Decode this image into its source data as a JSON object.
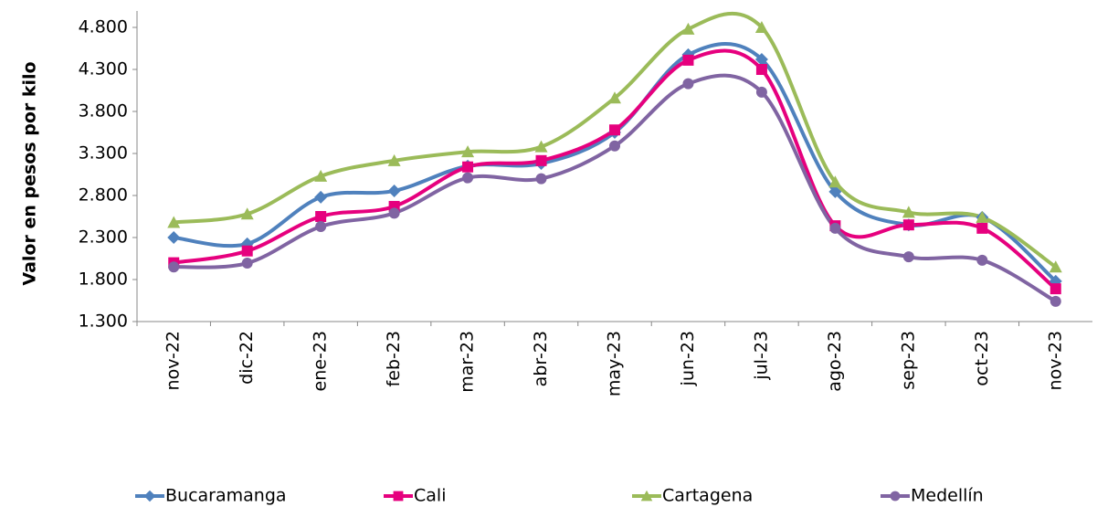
{
  "chart_data": {
    "type": "line",
    "y_label": "Valor en pesos por kilo",
    "categories": [
      "nov-22",
      "dic-22",
      "ene-23",
      "feb-23",
      "mar-23",
      "abr-23",
      "may-23",
      "jun-23",
      "jul-23",
      "ago-23",
      "sep-23",
      "oct-23",
      "nov-23"
    ],
    "series": [
      {
        "name": "Bucaramanga",
        "color": "#4f81bd",
        "marker": "diamond",
        "values": [
          2300,
          2225,
          2780,
          2855,
          3150,
          3180,
          3550,
          4475,
          4420,
          2845,
          2450,
          2540,
          1780
        ]
      },
      {
        "name": "Cali",
        "color": "#e6007e",
        "marker": "square",
        "values": [
          2000,
          2140,
          2550,
          2670,
          3140,
          3215,
          3580,
          4410,
          4300,
          2440,
          2450,
          2410,
          1690
        ]
      },
      {
        "name": "Cartagena",
        "color": "#9bbb59",
        "marker": "triangle",
        "values": [
          2480,
          2580,
          3030,
          3215,
          3320,
          3380,
          3960,
          4780,
          4800,
          2960,
          2600,
          2540,
          1950
        ]
      },
      {
        "name": "Medellín",
        "color": "#8064a2",
        "marker": "circle",
        "values": [
          1950,
          1995,
          2430,
          2590,
          3010,
          3000,
          3390,
          4130,
          4030,
          2410,
          2070,
          2030,
          1540
        ]
      }
    ],
    "ylim": [
      1300,
      4800
    ],
    "yticks": [
      {
        "value": 1300,
        "label": "1.300"
      },
      {
        "value": 1800,
        "label": "1.800"
      },
      {
        "value": 2300,
        "label": "2.300"
      },
      {
        "value": 2800,
        "label": "2.800"
      },
      {
        "value": 3300,
        "label": "3.300"
      },
      {
        "value": 3800,
        "label": "3.800"
      },
      {
        "value": 4300,
        "label": "4.300"
      },
      {
        "value": 4800,
        "label": "4.800"
      }
    ],
    "smooth": true,
    "legend": "bottom"
  }
}
